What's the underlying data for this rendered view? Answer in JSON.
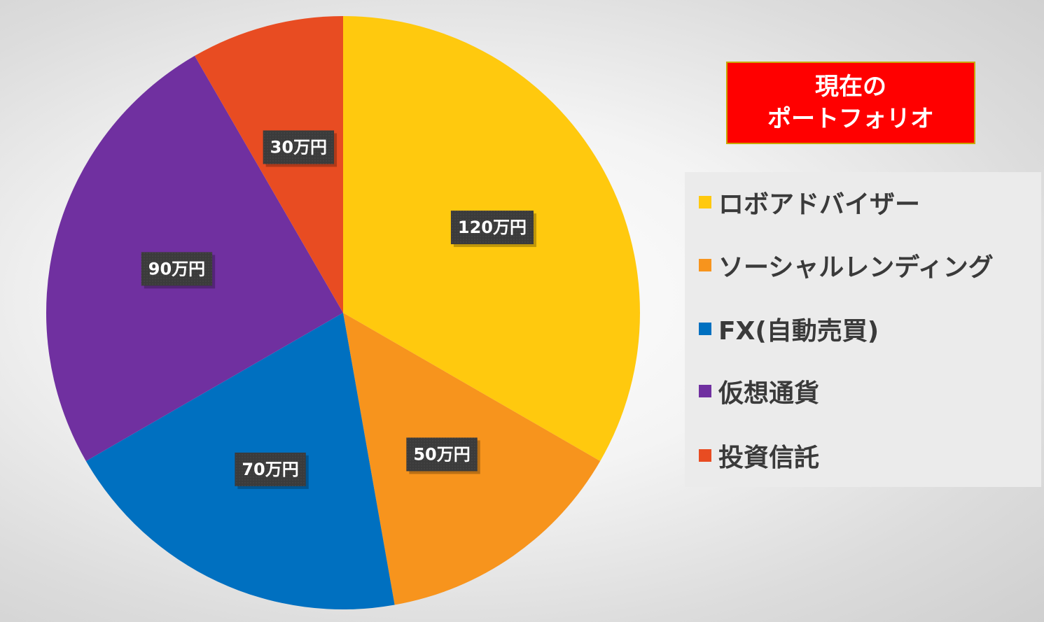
{
  "chart_data": {
    "type": "pie",
    "title_lines": [
      "現在の",
      "ポートフォリオ"
    ],
    "slices": [
      {
        "name": "ロボアドバイザー",
        "value": 120,
        "label": "120万円",
        "color": "#FFC90E"
      },
      {
        "name": "ソーシャルレンディング",
        "value": 50,
        "label": "50万円",
        "color": "#F7941D"
      },
      {
        "name": "FX(自動売買)",
        "value": 70,
        "label": "70万円",
        "color": "#0070C0"
      },
      {
        "name": "仮想通貨",
        "value": 90,
        "label": "90万円",
        "color": "#7030A0"
      },
      {
        "name": "投資信託",
        "value": 30,
        "label": "30万円",
        "color": "#E84C22"
      }
    ],
    "start": "12 o'clock",
    "direction": "clockwise",
    "legend_position": "right"
  }
}
